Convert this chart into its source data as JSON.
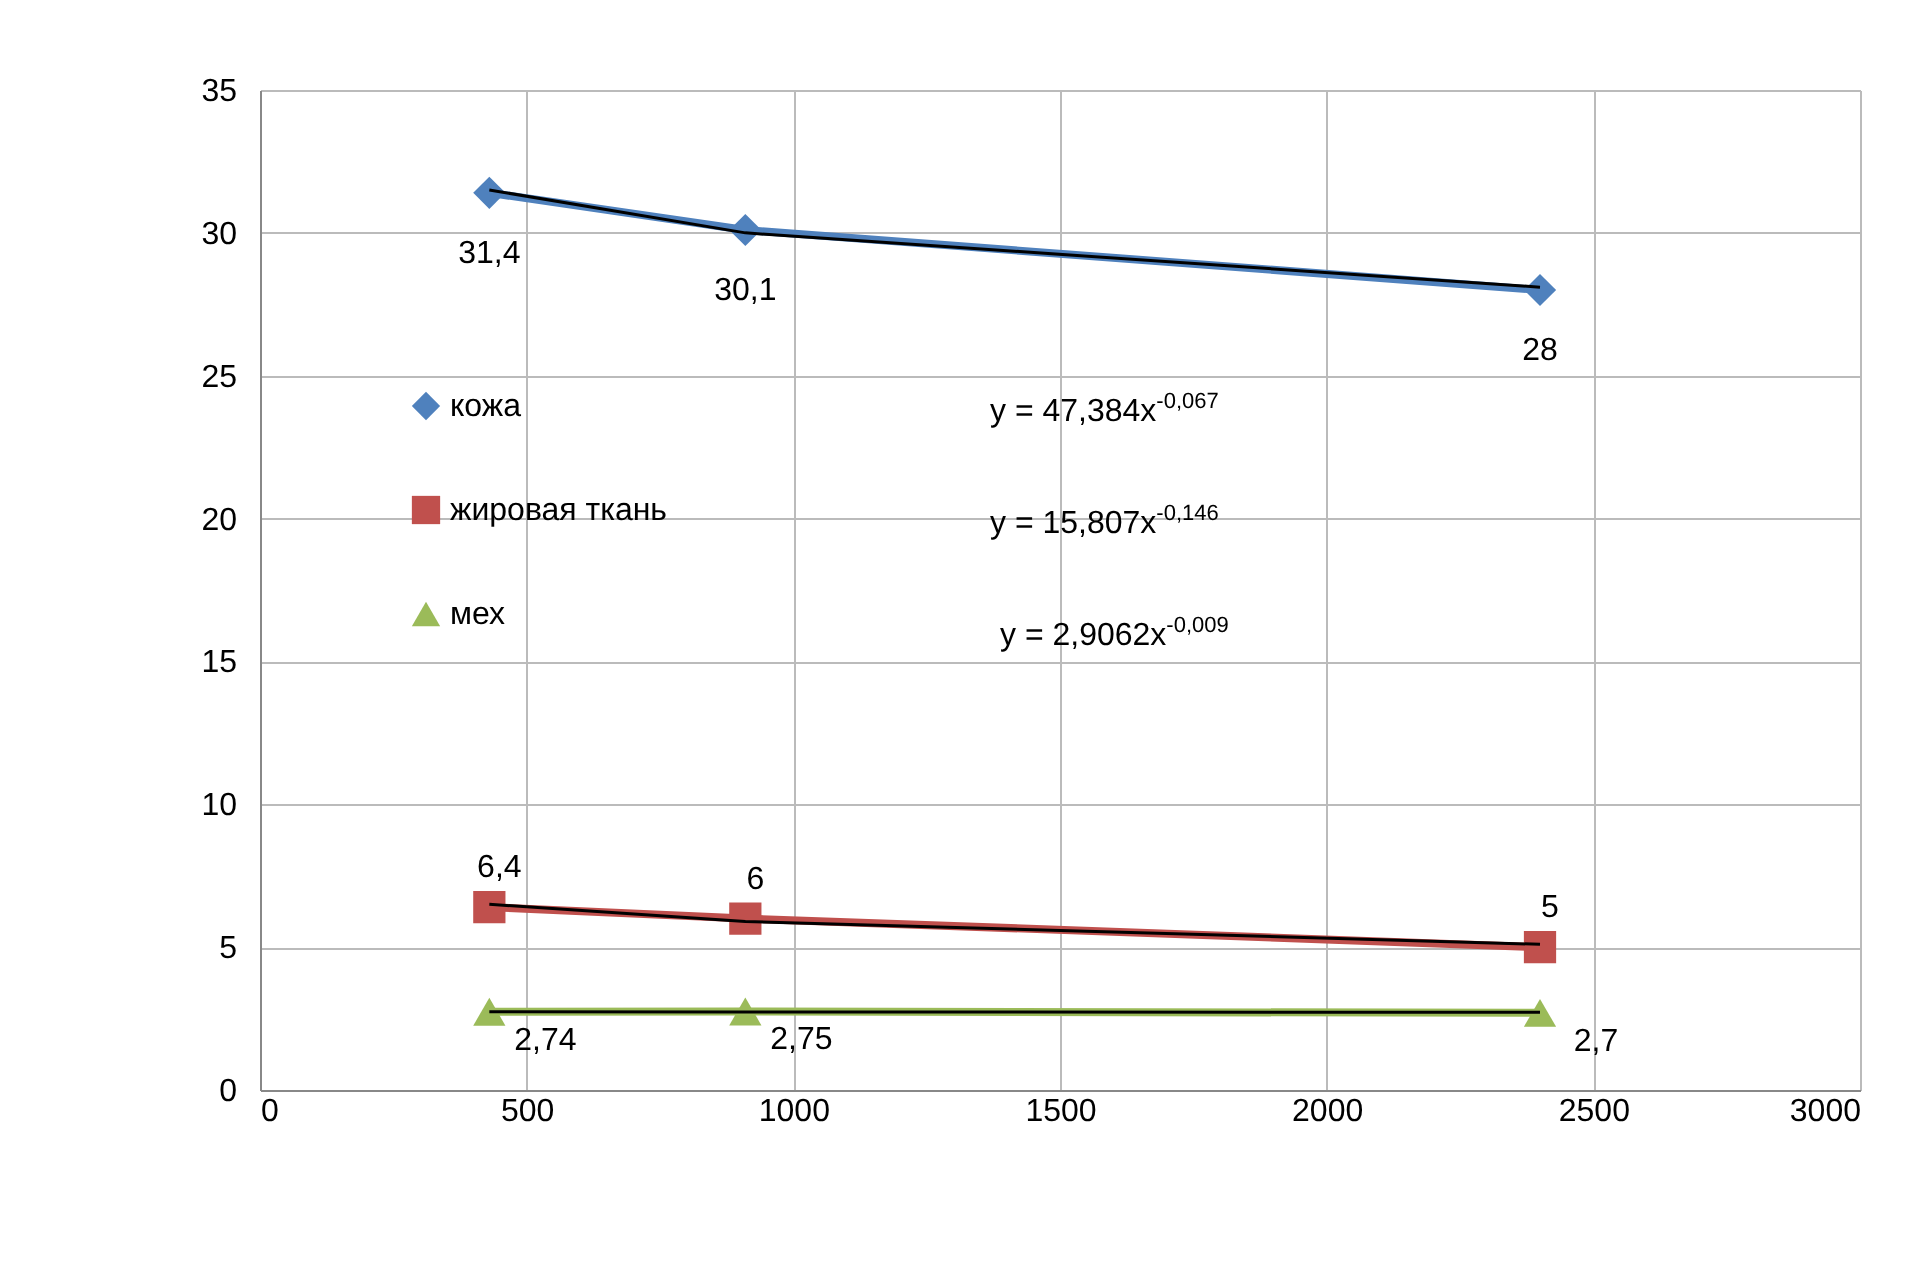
{
  "chart_data": {
    "type": "line",
    "x": [
      430,
      910,
      2400
    ],
    "series": [
      {
        "name": "кожа",
        "color": "#4f81bd",
        "marker": "diamond",
        "values": [
          31.4,
          30.1,
          28
        ],
        "value_labels": [
          "31,4",
          "30,1",
          "28"
        ]
      },
      {
        "name": "жировая ткань",
        "color": "#c0504d",
        "marker": "square",
        "values": [
          6.4,
          6,
          5
        ],
        "value_labels": [
          "6,4",
          "6",
          "5"
        ]
      },
      {
        "name": "мех",
        "color": "#9bbb59",
        "marker": "triangle",
        "values": [
          2.74,
          2.75,
          2.7
        ],
        "value_labels": [
          "2,74",
          "2,75",
          "2,7"
        ]
      },
      {
        "type": "line",
        "color": "#000000",
        "marker": "none",
        "values": [
          31.5,
          30,
          28.1
        ]
      },
      {
        "type": "line",
        "color": "#000000",
        "marker": "none",
        "values": [
          6.5,
          5.9,
          5.1
        ]
      },
      {
        "type": "line",
        "color": "#000000",
        "marker": "none",
        "values": [
          2.74,
          2.73,
          2.72
        ]
      }
    ],
    "xlim": [
      0,
      3000
    ],
    "xticks": [
      0,
      500,
      1000,
      1500,
      2000,
      2500,
      3000
    ],
    "ylim": [
      0,
      35
    ],
    "yticks": [
      0,
      5,
      10,
      15,
      20,
      25,
      30,
      35
    ],
    "grid": true,
    "legend": "left",
    "line_style": "solid",
    "annotations": [
      "y = 47,384x$^{-0,067}$",
      "y = 15,807x$^{-0,146}$",
      "y = 2,9062x$^{-0,009}$"
    ]
  }
}
